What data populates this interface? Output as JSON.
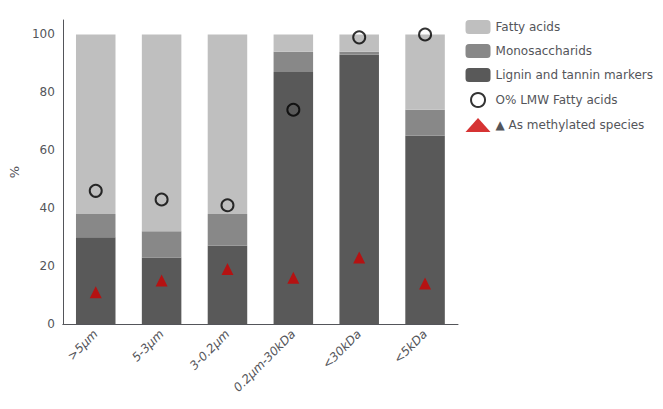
{
  "chart_data": {
    "type": "bar",
    "stacked": true,
    "categories": [
      ">5μm",
      "5-3μm",
      "3-0.2μm",
      "0.2μm-30kDa",
      "<30kDa",
      "<5kDa"
    ],
    "series": [
      {
        "name": "Lignin and tannin markers",
        "type": "bar",
        "color": "#595959",
        "values": [
          30,
          23,
          27,
          87,
          93,
          65
        ]
      },
      {
        "name": "Monosaccharids",
        "type": "bar",
        "color": "#888888",
        "values": [
          8,
          9,
          11,
          7,
          1,
          9
        ]
      },
      {
        "name": "Fatty acids",
        "type": "bar",
        "color": "#bfbfbf",
        "values": [
          62,
          68,
          62,
          6,
          6,
          26
        ]
      },
      {
        "name": "O% LMW Fatty acids",
        "type": "scatter",
        "marker": "open_circle",
        "color": "#000000",
        "values": [
          46,
          43,
          41,
          74,
          99,
          100
        ]
      },
      {
        "name": "▲ As methylated species",
        "type": "scatter",
        "marker": "triangle",
        "color": "#cc0000",
        "values": [
          11,
          15,
          19,
          16,
          23,
          14
        ]
      }
    ],
    "ylabel": "%",
    "ylim": [
      0,
      105
    ],
    "yticks": [
      0,
      20,
      40,
      60,
      80,
      100
    ],
    "grid": false,
    "legend": "right"
  }
}
